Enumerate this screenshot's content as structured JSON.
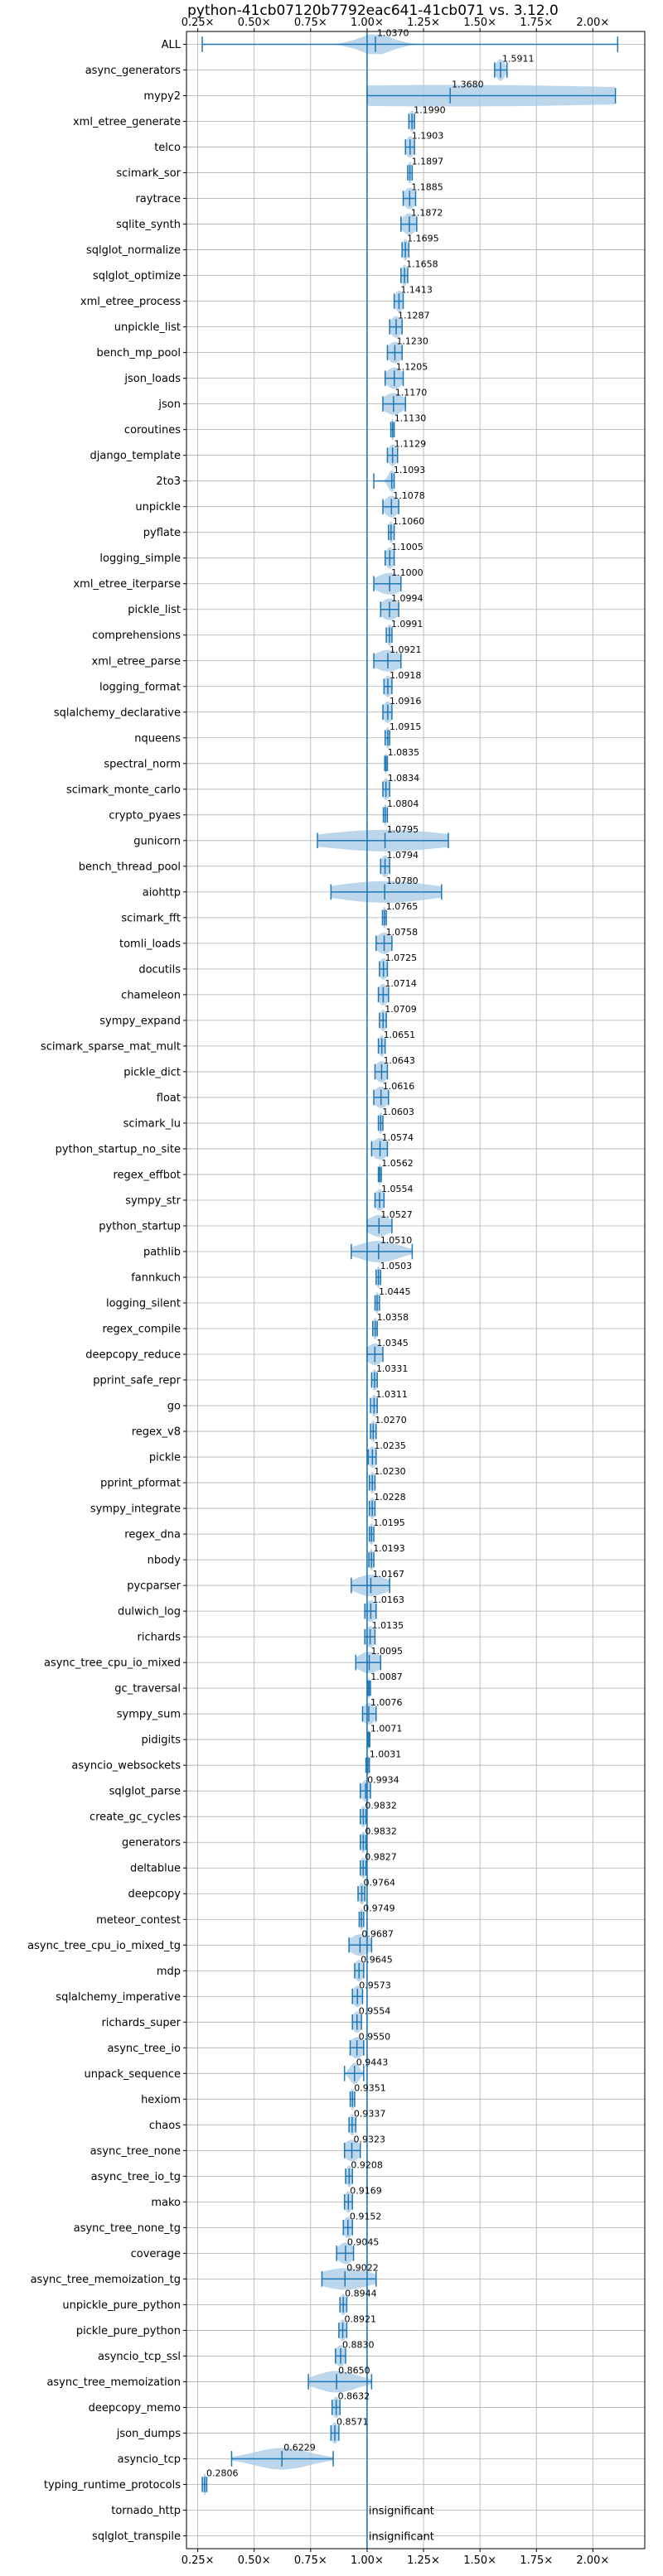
{
  "chart_data": {
    "type": "violin",
    "title": "python-41cb07120b7792eac641-41cb071 vs. 3.12.0",
    "orientation": "horizontal",
    "x_ticks": [
      0.25,
      0.5,
      0.75,
      1.0,
      1.25,
      1.5,
      1.75,
      2.0
    ],
    "x_tick_labels": [
      "0.25×",
      "0.50×",
      "0.75×",
      "1.00×",
      "1.25×",
      "1.50×",
      "1.75×",
      "2.00×"
    ],
    "xlim": [
      0.2,
      2.23
    ],
    "reference_x": 1.0,
    "grid": true,
    "colors": {
      "violin": "#a6c8e6",
      "line": "#1f77b4",
      "grid": "#b0b0b0",
      "reference": "#1f77b4"
    },
    "benchmarks": [
      {
        "name": "ALL",
        "value": 1.037,
        "label": "1.0370",
        "min": 0.27,
        "max": 2.11,
        "spread": 0.07
      },
      {
        "name": "async_generators",
        "value": 1.5911,
        "label": "1.5911",
        "min": 1.565,
        "max": 1.62,
        "spread": 0.02
      },
      {
        "name": "mypy2",
        "value": 1.368,
        "label": "1.3680",
        "min": 1.0,
        "max": 2.1,
        "spread": 1.1
      },
      {
        "name": "xml_etree_generate",
        "value": 1.199,
        "label": "1.1990",
        "min": 1.185,
        "max": 1.21,
        "spread": 0.012
      },
      {
        "name": "telco",
        "value": 1.1903,
        "label": "1.1903",
        "min": 1.17,
        "max": 1.21,
        "spread": 0.018
      },
      {
        "name": "scimark_sor",
        "value": 1.1897,
        "label": "1.1897",
        "min": 1.18,
        "max": 1.2,
        "spread": 0.01
      },
      {
        "name": "raytrace",
        "value": 1.1885,
        "label": "1.1885",
        "min": 1.16,
        "max": 1.215,
        "spread": 0.025
      },
      {
        "name": "sqlite_synth",
        "value": 1.1872,
        "label": "1.1872",
        "min": 1.15,
        "max": 1.22,
        "spread": 0.03
      },
      {
        "name": "sqlglot_normalize",
        "value": 1.1695,
        "label": "1.1695",
        "min": 1.155,
        "max": 1.185,
        "spread": 0.012
      },
      {
        "name": "sqlglot_optimize",
        "value": 1.1658,
        "label": "1.1658",
        "min": 1.15,
        "max": 1.18,
        "spread": 0.012
      },
      {
        "name": "xml_etree_process",
        "value": 1.1413,
        "label": "1.1413",
        "min": 1.12,
        "max": 1.16,
        "spread": 0.018
      },
      {
        "name": "unpickle_list",
        "value": 1.1287,
        "label": "1.1287",
        "min": 1.1,
        "max": 1.155,
        "spread": 0.025
      },
      {
        "name": "bench_mp_pool",
        "value": 1.123,
        "label": "1.1230",
        "min": 1.09,
        "max": 1.155,
        "spread": 0.03
      },
      {
        "name": "json_loads",
        "value": 1.1205,
        "label": "1.1205",
        "min": 1.08,
        "max": 1.16,
        "spread": 0.035
      },
      {
        "name": "json",
        "value": 1.117,
        "label": "1.1170",
        "min": 1.07,
        "max": 1.17,
        "spread": 0.045
      },
      {
        "name": "coroutines",
        "value": 1.113,
        "label": "1.1130",
        "min": 1.105,
        "max": 1.12,
        "spread": 0.008
      },
      {
        "name": "django_template",
        "value": 1.1129,
        "label": "1.1129",
        "min": 1.09,
        "max": 1.135,
        "spread": 0.02
      },
      {
        "name": "2to3",
        "value": 1.1093,
        "label": "1.1093",
        "min": 1.03,
        "max": 1.12,
        "spread": 0.015
      },
      {
        "name": "unpickle",
        "value": 1.1078,
        "label": "1.1078",
        "min": 1.07,
        "max": 1.14,
        "spread": 0.03
      },
      {
        "name": "pyflate",
        "value": 1.106,
        "label": "1.1060",
        "min": 1.095,
        "max": 1.12,
        "spread": 0.012
      },
      {
        "name": "logging_simple",
        "value": 1.1005,
        "label": "1.1005",
        "min": 1.08,
        "max": 1.12,
        "spread": 0.018
      },
      {
        "name": "xml_etree_iterparse",
        "value": 1.1,
        "label": "1.1000",
        "min": 1.03,
        "max": 1.15,
        "spread": 0.06
      },
      {
        "name": "pickle_list",
        "value": 1.0994,
        "label": "1.0994",
        "min": 1.06,
        "max": 1.14,
        "spread": 0.04
      },
      {
        "name": "comprehensions",
        "value": 1.0991,
        "label": "1.0991",
        "min": 1.085,
        "max": 1.11,
        "spread": 0.012
      },
      {
        "name": "xml_etree_parse",
        "value": 1.0921,
        "label": "1.0921",
        "min": 1.03,
        "max": 1.15,
        "spread": 0.06
      },
      {
        "name": "logging_format",
        "value": 1.0918,
        "label": "1.0918",
        "min": 1.075,
        "max": 1.11,
        "spread": 0.018
      },
      {
        "name": "sqlalchemy_declarative",
        "value": 1.0916,
        "label": "1.0916",
        "min": 1.07,
        "max": 1.11,
        "spread": 0.02
      },
      {
        "name": "nqueens",
        "value": 1.0915,
        "label": "1.0915",
        "min": 1.08,
        "max": 1.1,
        "spread": 0.01
      },
      {
        "name": "spectral_norm",
        "value": 1.0835,
        "label": "1.0835",
        "min": 1.078,
        "max": 1.09,
        "spread": 0.006
      },
      {
        "name": "scimark_monte_carlo",
        "value": 1.0834,
        "label": "1.0834",
        "min": 1.07,
        "max": 1.1,
        "spread": 0.015
      },
      {
        "name": "crypto_pyaes",
        "value": 1.0804,
        "label": "1.0804",
        "min": 1.072,
        "max": 1.09,
        "spread": 0.008
      },
      {
        "name": "gunicorn",
        "value": 1.0795,
        "label": "1.0795",
        "min": 0.78,
        "max": 1.36,
        "spread": 0.28
      },
      {
        "name": "bench_thread_pool",
        "value": 1.0794,
        "label": "1.0794",
        "min": 1.06,
        "max": 1.1,
        "spread": 0.02
      },
      {
        "name": "aiohttp",
        "value": 1.078,
        "label": "1.0780",
        "min": 0.84,
        "max": 1.33,
        "spread": 0.22
      },
      {
        "name": "scimark_fft",
        "value": 1.0765,
        "label": "1.0765",
        "min": 1.068,
        "max": 1.085,
        "spread": 0.008
      },
      {
        "name": "tomli_loads",
        "value": 1.0758,
        "label": "1.0758",
        "min": 1.04,
        "max": 1.11,
        "spread": 0.035
      },
      {
        "name": "docutils",
        "value": 1.0725,
        "label": "1.0725",
        "min": 1.055,
        "max": 1.09,
        "spread": 0.018
      },
      {
        "name": "chameleon",
        "value": 1.0714,
        "label": "1.0714",
        "min": 1.05,
        "max": 1.095,
        "spread": 0.022
      },
      {
        "name": "sympy_expand",
        "value": 1.0709,
        "label": "1.0709",
        "min": 1.055,
        "max": 1.085,
        "spread": 0.015
      },
      {
        "name": "scimark_sparse_mat_mult",
        "value": 1.0651,
        "label": "1.0651",
        "min": 1.05,
        "max": 1.08,
        "spread": 0.014
      },
      {
        "name": "pickle_dict",
        "value": 1.0643,
        "label": "1.0643",
        "min": 1.035,
        "max": 1.09,
        "spread": 0.028
      },
      {
        "name": "float",
        "value": 1.0616,
        "label": "1.0616",
        "min": 1.03,
        "max": 1.095,
        "spread": 0.032
      },
      {
        "name": "scimark_lu",
        "value": 1.0603,
        "label": "1.0603",
        "min": 1.05,
        "max": 1.07,
        "spread": 0.01
      },
      {
        "name": "python_startup_no_site",
        "value": 1.0574,
        "label": "1.0574",
        "min": 1.02,
        "max": 1.09,
        "spread": 0.035
      },
      {
        "name": "regex_effbot",
        "value": 1.0562,
        "label": "1.0562",
        "min": 1.05,
        "max": 1.063,
        "spread": 0.006
      },
      {
        "name": "sympy_str",
        "value": 1.0554,
        "label": "1.0554",
        "min": 1.035,
        "max": 1.075,
        "spread": 0.02
      },
      {
        "name": "python_startup",
        "value": 1.0527,
        "label": "1.0527",
        "min": 1.0,
        "max": 1.11,
        "spread": 0.05
      },
      {
        "name": "pathlib",
        "value": 1.051,
        "label": "1.0510",
        "min": 0.93,
        "max": 1.2,
        "spread": 0.09
      },
      {
        "name": "fannkuch",
        "value": 1.0503,
        "label": "1.0503",
        "min": 1.04,
        "max": 1.06,
        "spread": 0.01
      },
      {
        "name": "logging_silent",
        "value": 1.0445,
        "label": "1.0445",
        "min": 1.035,
        "max": 1.055,
        "spread": 0.01
      },
      {
        "name": "regex_compile",
        "value": 1.0358,
        "label": "1.0358",
        "min": 1.025,
        "max": 1.045,
        "spread": 0.01
      },
      {
        "name": "deepcopy_reduce",
        "value": 1.0345,
        "label": "1.0345",
        "min": 1.0,
        "max": 1.07,
        "spread": 0.035
      },
      {
        "name": "pprint_safe_repr",
        "value": 1.0331,
        "label": "1.0331",
        "min": 1.02,
        "max": 1.045,
        "spread": 0.012
      },
      {
        "name": "go",
        "value": 1.0311,
        "label": "1.0311",
        "min": 1.015,
        "max": 1.045,
        "spread": 0.014
      },
      {
        "name": "regex_v8",
        "value": 1.027,
        "label": "1.0270",
        "min": 1.015,
        "max": 1.04,
        "spread": 0.012
      },
      {
        "name": "pickle",
        "value": 1.0235,
        "label": "1.0235",
        "min": 1.005,
        "max": 1.04,
        "spread": 0.018
      },
      {
        "name": "pprint_pformat",
        "value": 1.023,
        "label": "1.0230",
        "min": 1.01,
        "max": 1.035,
        "spread": 0.012
      },
      {
        "name": "sympy_integrate",
        "value": 1.0228,
        "label": "1.0228",
        "min": 1.01,
        "max": 1.035,
        "spread": 0.012
      },
      {
        "name": "regex_dna",
        "value": 1.0195,
        "label": "1.0195",
        "min": 1.01,
        "max": 1.03,
        "spread": 0.01
      },
      {
        "name": "nbody",
        "value": 1.0193,
        "label": "1.0193",
        "min": 1.008,
        "max": 1.03,
        "spread": 0.01
      },
      {
        "name": "pycparser",
        "value": 1.0167,
        "label": "1.0167",
        "min": 0.93,
        "max": 1.1,
        "spread": 0.07
      },
      {
        "name": "dulwich_log",
        "value": 1.0163,
        "label": "1.0163",
        "min": 0.99,
        "max": 1.04,
        "spread": 0.025
      },
      {
        "name": "richards",
        "value": 1.0135,
        "label": "1.0135",
        "min": 0.99,
        "max": 1.035,
        "spread": 0.022
      },
      {
        "name": "async_tree_cpu_io_mixed",
        "value": 1.0095,
        "label": "1.0095",
        "min": 0.95,
        "max": 1.06,
        "spread": 0.05
      },
      {
        "name": "gc_traversal",
        "value": 1.0087,
        "label": "1.0087",
        "min": 1.003,
        "max": 1.015,
        "spread": 0.005
      },
      {
        "name": "sympy_sum",
        "value": 1.0076,
        "label": "1.0076",
        "min": 0.98,
        "max": 1.04,
        "spread": 0.028
      },
      {
        "name": "pidigits",
        "value": 1.0071,
        "label": "1.0071",
        "min": 1.002,
        "max": 1.012,
        "spread": 0.004
      },
      {
        "name": "asyncio_websockets",
        "value": 1.0031,
        "label": "1.0031",
        "min": 0.995,
        "max": 1.01,
        "spread": 0.006
      },
      {
        "name": "sqlglot_parse",
        "value": 0.9934,
        "label": "0.9934",
        "min": 0.97,
        "max": 1.015,
        "spread": 0.02
      },
      {
        "name": "create_gc_cycles",
        "value": 0.9832,
        "label": "0.9832",
        "min": 0.97,
        "max": 0.995,
        "spread": 0.012
      },
      {
        "name": "generators",
        "value": 0.9832,
        "label": "0.9832",
        "min": 0.97,
        "max": 0.995,
        "spread": 0.012
      },
      {
        "name": "deltablue",
        "value": 0.9827,
        "label": "0.9827",
        "min": 0.97,
        "max": 0.995,
        "spread": 0.012
      },
      {
        "name": "deepcopy",
        "value": 0.9764,
        "label": "0.9764",
        "min": 0.96,
        "max": 0.99,
        "spread": 0.014
      },
      {
        "name": "meteor_contest",
        "value": 0.9749,
        "label": "0.9749",
        "min": 0.965,
        "max": 0.985,
        "spread": 0.01
      },
      {
        "name": "async_tree_cpu_io_mixed_tg",
        "value": 0.9687,
        "label": "0.9687",
        "min": 0.92,
        "max": 1.02,
        "spread": 0.045
      },
      {
        "name": "mdp",
        "value": 0.9645,
        "label": "0.9645",
        "min": 0.945,
        "max": 0.985,
        "spread": 0.02
      },
      {
        "name": "sqlalchemy_imperative",
        "value": 0.9573,
        "label": "0.9573",
        "min": 0.935,
        "max": 0.98,
        "spread": 0.022
      },
      {
        "name": "richards_super",
        "value": 0.9554,
        "label": "0.9554",
        "min": 0.935,
        "max": 0.975,
        "spread": 0.02
      },
      {
        "name": "async_tree_io",
        "value": 0.955,
        "label": "0.9550",
        "min": 0.925,
        "max": 0.985,
        "spread": 0.03
      },
      {
        "name": "unpack_sequence",
        "value": 0.9443,
        "label": "0.9443",
        "min": 0.9,
        "max": 0.985,
        "spread": 0.02
      },
      {
        "name": "hexiom",
        "value": 0.9351,
        "label": "0.9351",
        "min": 0.925,
        "max": 0.945,
        "spread": 0.01
      },
      {
        "name": "chaos",
        "value": 0.9337,
        "label": "0.9337",
        "min": 0.92,
        "max": 0.95,
        "spread": 0.014
      },
      {
        "name": "async_tree_none",
        "value": 0.9323,
        "label": "0.9323",
        "min": 0.9,
        "max": 0.97,
        "spread": 0.035
      },
      {
        "name": "async_tree_io_tg",
        "value": 0.9208,
        "label": "0.9208",
        "min": 0.905,
        "max": 0.935,
        "spread": 0.014
      },
      {
        "name": "mako",
        "value": 0.9169,
        "label": "0.9169",
        "min": 0.9,
        "max": 0.935,
        "spread": 0.016
      },
      {
        "name": "async_tree_none_tg",
        "value": 0.9152,
        "label": "0.9152",
        "min": 0.895,
        "max": 0.935,
        "spread": 0.02
      },
      {
        "name": "coverage",
        "value": 0.9045,
        "label": "0.9045",
        "min": 0.865,
        "max": 0.94,
        "spread": 0.035
      },
      {
        "name": "async_tree_memoization_tg",
        "value": 0.9022,
        "label": "0.9022",
        "min": 0.8,
        "max": 1.04,
        "spread": 0.11
      },
      {
        "name": "unpickle_pure_python",
        "value": 0.8944,
        "label": "0.8944",
        "min": 0.88,
        "max": 0.91,
        "spread": 0.014
      },
      {
        "name": "pickle_pure_python",
        "value": 0.8921,
        "label": "0.8921",
        "min": 0.875,
        "max": 0.91,
        "spread": 0.016
      },
      {
        "name": "asyncio_tcp_ssl",
        "value": 0.883,
        "label": "0.8830",
        "min": 0.86,
        "max": 0.905,
        "spread": 0.022
      },
      {
        "name": "async_tree_memoization",
        "value": 0.865,
        "label": "0.8650",
        "min": 0.74,
        "max": 1.02,
        "spread": 0.09
      },
      {
        "name": "deepcopy_memo",
        "value": 0.8632,
        "label": "0.8632",
        "min": 0.845,
        "max": 0.88,
        "spread": 0.016
      },
      {
        "name": "json_dumps",
        "value": 0.8571,
        "label": "0.8571",
        "min": 0.84,
        "max": 0.875,
        "spread": 0.016
      },
      {
        "name": "asyncio_tcp",
        "value": 0.6229,
        "label": "0.6229",
        "min": 0.4,
        "max": 0.85,
        "spread": 0.12
      },
      {
        "name": "typing_runtime_protocols",
        "value": 0.2806,
        "label": "0.2806",
        "min": 0.27,
        "max": 0.29,
        "spread": 0.008
      },
      {
        "name": "tornado_http",
        "value": null,
        "label": "insignificant"
      },
      {
        "name": "sqlglot_transpile",
        "value": null,
        "label": "insignificant"
      }
    ]
  }
}
